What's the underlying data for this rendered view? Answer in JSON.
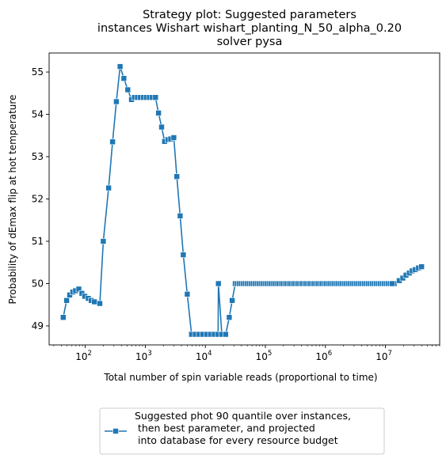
{
  "chart_data": {
    "type": "line",
    "title": [
      "Strategy plot: Suggested parameters",
      "instances Wishart wishart_planting_N_50_alpha_0.20",
      "solver pysa"
    ],
    "xlabel": "Total number of spin variable reads (proportional to time)",
    "ylabel": "Probability of dEmax flip at hot temperature",
    "xscale": "log",
    "xlim": [
      25,
      80000000
    ],
    "ylim": [
      48.55,
      55.45
    ],
    "x_ticks": [
      {
        "label": "10",
        "exp": "2",
        "value": 100
      },
      {
        "label": "10",
        "exp": "3",
        "value": 1000
      },
      {
        "label": "10",
        "exp": "4",
        "value": 10000
      },
      {
        "label": "10",
        "exp": "5",
        "value": 100000
      },
      {
        "label": "10",
        "exp": "6",
        "value": 1000000
      },
      {
        "label": "10",
        "exp": "7",
        "value": 10000000
      }
    ],
    "y_ticks": [
      "49",
      "50",
      "51",
      "52",
      "53",
      "54",
      "55"
    ],
    "grid": false,
    "legend_position": "below plot",
    "color": "#1f77b4",
    "series": [
      {
        "name": "Suggested phot 90 quantile over instances,\n then best parameter, and projected\n into database for every resource budget",
        "marker": "square",
        "points": [
          [
            43,
            49.2
          ],
          [
            49,
            49.6
          ],
          [
            55,
            49.73
          ],
          [
            62,
            49.8
          ],
          [
            69,
            49.83
          ],
          [
            78,
            49.87
          ],
          [
            88,
            49.77
          ],
          [
            98,
            49.7
          ],
          [
            112,
            49.65
          ],
          [
            126,
            49.6
          ],
          [
            142,
            49.57
          ],
          [
            175,
            49.53
          ],
          [
            200,
            51.0
          ],
          [
            245,
            52.26
          ],
          [
            285,
            53.35
          ],
          [
            330,
            54.3
          ],
          [
            380,
            55.13
          ],
          [
            440,
            54.85
          ],
          [
            510,
            54.58
          ],
          [
            590,
            54.35
          ],
          [
            660,
            54.4
          ],
          [
            740,
            54.4
          ],
          [
            830,
            54.4
          ],
          [
            930,
            54.4
          ],
          [
            1040,
            54.4
          ],
          [
            1170,
            54.4
          ],
          [
            1310,
            54.4
          ],
          [
            1480,
            54.4
          ],
          [
            1660,
            54.03
          ],
          [
            1870,
            53.7
          ],
          [
            2100,
            53.36
          ],
          [
            2380,
            53.4
          ],
          [
            2650,
            53.42
          ],
          [
            2980,
            53.45
          ],
          [
            3350,
            52.53
          ],
          [
            3800,
            51.6
          ],
          [
            4300,
            50.68
          ],
          [
            5000,
            49.75
          ],
          [
            5900,
            48.8
          ],
          [
            6800,
            48.8
          ],
          [
            7900,
            48.8
          ],
          [
            9100,
            48.8
          ],
          [
            10500,
            48.8
          ],
          [
            12200,
            48.8
          ],
          [
            14100,
            48.8
          ],
          [
            16300,
            48.8
          ],
          [
            18800,
            48.8
          ],
          [
            21800,
            48.8
          ],
          [
            25000,
            49.2
          ],
          [
            28000,
            49.6
          ],
          [
            31500,
            50.0
          ],
          [
            100000,
            50.0
          ],
          [
            1000000,
            50.0
          ],
          [
            10000000,
            50.0
          ],
          [
            14000000,
            50.0
          ],
          [
            16500,
            50.0
          ],
          [
            17000000,
            50.07
          ],
          [
            19500000,
            50.13
          ],
          [
            22000000,
            50.2
          ],
          [
            25000000,
            50.25
          ],
          [
            28000000,
            50.3
          ],
          [
            31500000,
            50.33
          ],
          [
            35500000,
            50.37
          ],
          [
            40000000,
            50.4
          ]
        ]
      }
    ]
  }
}
